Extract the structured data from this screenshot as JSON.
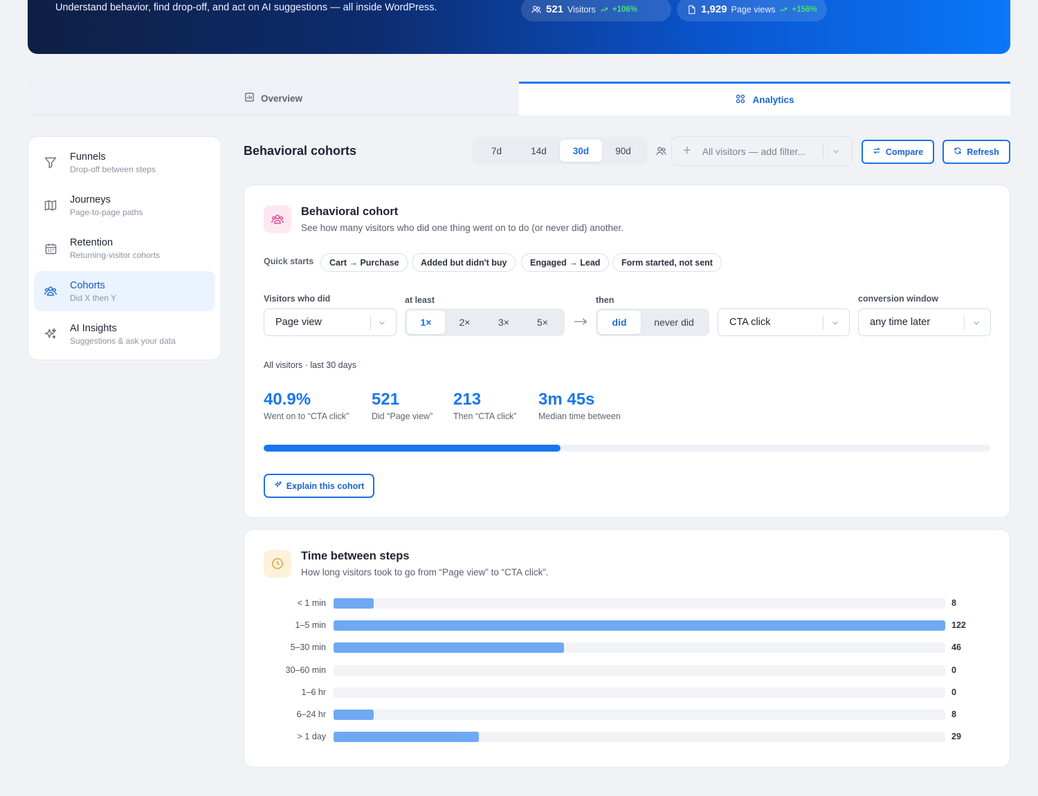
{
  "hero": {
    "subtitle": "Understand behavior, find drop-off, and act on AI suggestions — all inside WordPress.",
    "stats": [
      {
        "value": "521",
        "label": "Visitors",
        "trend": "+106%"
      },
      {
        "value": "1,929",
        "label": "Page views",
        "trend": "+156%"
      }
    ]
  },
  "tabs": [
    {
      "label": "Overview",
      "active": false
    },
    {
      "label": "Analytics",
      "active": true
    }
  ],
  "sidebar": {
    "items": [
      {
        "title": "Funnels",
        "desc": "Drop-off between steps",
        "icon": "funnel-icon"
      },
      {
        "title": "Journeys",
        "desc": "Page-to-page paths",
        "icon": "map-icon"
      },
      {
        "title": "Retention",
        "desc": "Returning-visitor cohorts",
        "icon": "calendar-icon"
      },
      {
        "title": "Cohorts",
        "desc": "Did X then Y",
        "icon": "people-icon",
        "active": true
      },
      {
        "title": "AI Insights",
        "desc": "Suggestions & ask your data",
        "icon": "sparkles-icon"
      }
    ]
  },
  "toolbar": {
    "title": "Behavioral cohorts",
    "ranges": [
      "7d",
      "14d",
      "30d",
      "90d"
    ],
    "active_range": "30d",
    "filter_placeholder": "All visitors — add filter...",
    "compare_label": "Compare",
    "refresh_label": "Refresh"
  },
  "cohort": {
    "title": "Behavioral cohort",
    "desc": "See how many visitors who did one thing went on to do (or never did) another.",
    "quick_starts_label": "Quick starts",
    "quick_starts": [
      "Cart → Purchase",
      "Added but didn't buy",
      "Engaged → Lead",
      "Form started, not sent"
    ],
    "visitors_who_did_label": "Visitors who did",
    "first_event": "Page view",
    "at_least_label": "at least",
    "counts": [
      "1×",
      "2×",
      "3×",
      "5×"
    ],
    "active_count": "1×",
    "then_label": "then",
    "then_options": [
      "did",
      "never did"
    ],
    "active_then": "did",
    "second_event": "CTA click",
    "window_label": "conversion window",
    "window": "any time later",
    "scope": "All visitors · last 30 days",
    "stats": [
      {
        "value": "40.9%",
        "label": "Went on to “CTA click”"
      },
      {
        "value": "521",
        "label": "Did “Page view”"
      },
      {
        "value": "213",
        "label": "Then “CTA click”"
      },
      {
        "value": "3m 45s",
        "label": "Median time between"
      }
    ],
    "conversion_fraction": 0.409,
    "explain_label": "Explain this cohort"
  },
  "time_between": {
    "title": "Time between steps",
    "desc": "How long visitors took to go from “Page view” to “CTA click”."
  },
  "chart_data": {
    "type": "bar",
    "orientation": "horizontal",
    "categories": [
      "< 1 min",
      "1–5 min",
      "5–30 min",
      "30–60 min",
      "1–6 hr",
      "6–24 hr",
      "> 1 day"
    ],
    "values": [
      8,
      122,
      46,
      0,
      0,
      8,
      29
    ],
    "max": 122,
    "colors": {
      "bar": "#6fa9f2",
      "track": "#f1f3f6"
    }
  },
  "colors": {
    "accent": "#1877ee",
    "pink_bg": "#fde8f1",
    "pink_icon": "#e0509a",
    "amber_bg": "#fdf1dc",
    "amber_icon": "#e7a52a"
  }
}
